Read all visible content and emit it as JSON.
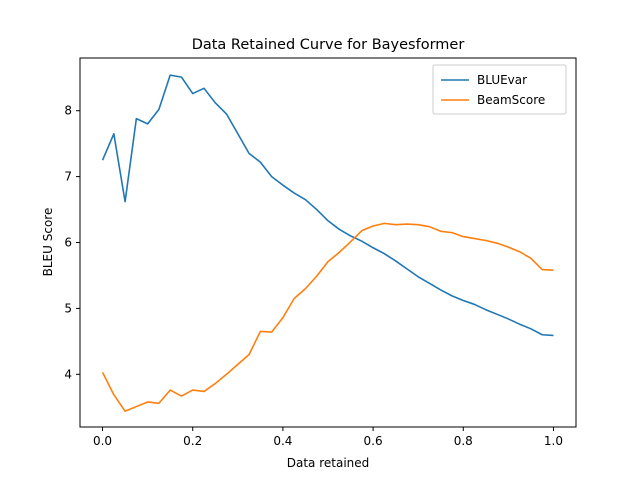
{
  "chart_data": {
    "type": "line",
    "title": "Data Retained Curve for Bayesformer",
    "xlabel": "Data retained",
    "ylabel": "BLEU Score",
    "xlim": [
      -0.05,
      1.05
    ],
    "ylim": [
      3.2,
      8.8
    ],
    "xticks": [
      0.0,
      0.2,
      0.4,
      0.6,
      0.8,
      1.0
    ],
    "xtick_labels": [
      "0.0",
      "0.2",
      "0.4",
      "0.6",
      "0.8",
      "1.0"
    ],
    "yticks": [
      4,
      5,
      6,
      7,
      8
    ],
    "ytick_labels": [
      "4",
      "5",
      "6",
      "7",
      "8"
    ],
    "grid": false,
    "legend_position": "top-right",
    "x": [
      0.0,
      0.025,
      0.05,
      0.075,
      0.1,
      0.125,
      0.15,
      0.175,
      0.2,
      0.225,
      0.25,
      0.275,
      0.3,
      0.325,
      0.35,
      0.375,
      0.4,
      0.425,
      0.45,
      0.475,
      0.5,
      0.525,
      0.55,
      0.575,
      0.6,
      0.625,
      0.65,
      0.675,
      0.7,
      0.725,
      0.75,
      0.775,
      0.8,
      0.825,
      0.85,
      0.875,
      0.9,
      0.925,
      0.95,
      0.975,
      1.0
    ],
    "series": [
      {
        "name": "BLUEvar",
        "color": "#1f77b4",
        "values": [
          7.25,
          7.65,
          6.62,
          7.88,
          7.8,
          8.02,
          8.54,
          8.51,
          8.26,
          8.34,
          8.12,
          7.95,
          7.65,
          7.35,
          7.22,
          7.0,
          6.87,
          6.75,
          6.65,
          6.5,
          6.33,
          6.2,
          6.1,
          6.02,
          5.92,
          5.83,
          5.72,
          5.6,
          5.48,
          5.38,
          5.28,
          5.19,
          5.12,
          5.06,
          4.98,
          4.91,
          4.84,
          4.76,
          4.69,
          4.6,
          4.59
        ]
      },
      {
        "name": "BeamScore",
        "color": "#ff7f0e",
        "values": [
          4.03,
          3.69,
          3.44,
          3.51,
          3.58,
          3.56,
          3.76,
          3.67,
          3.76,
          3.74,
          3.86,
          4.0,
          4.15,
          4.3,
          4.65,
          4.64,
          4.86,
          5.15,
          5.3,
          5.49,
          5.71,
          5.85,
          6.01,
          6.18,
          6.25,
          6.29,
          6.27,
          6.28,
          6.27,
          6.24,
          6.17,
          6.15,
          6.09,
          6.06,
          6.03,
          5.99,
          5.93,
          5.86,
          5.76,
          5.59,
          5.58
        ]
      }
    ]
  }
}
